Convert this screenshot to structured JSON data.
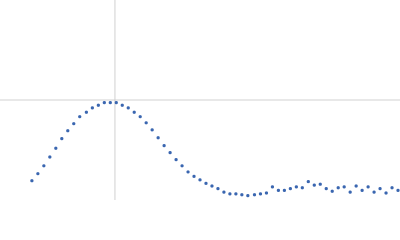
{
  "chart_data": {
    "type": "scatter",
    "x": [
      0.48,
      0.57,
      0.66,
      0.75,
      0.84,
      0.93,
      1.02,
      1.11,
      1.2,
      1.3,
      1.39,
      1.48,
      1.57,
      1.66,
      1.75,
      1.84,
      1.93,
      2.02,
      2.11,
      2.2,
      2.29,
      2.38,
      2.47,
      2.56,
      2.65,
      2.74,
      2.83,
      2.92,
      3.01,
      3.1,
      3.19,
      3.28,
      3.37,
      3.46,
      3.55,
      3.64,
      3.73,
      3.83,
      3.92,
      4.01,
      4.1,
      4.19,
      4.28,
      4.37,
      4.46,
      4.55,
      4.64,
      4.73,
      4.82,
      4.91,
      5.0,
      5.09,
      5.18,
      5.27,
      5.36,
      5.45,
      5.54,
      5.63,
      5.72,
      5.81,
      5.9,
      5.99
    ],
    "values": [
      0.19,
      0.27,
      0.36,
      0.46,
      0.56,
      0.67,
      0.76,
      0.84,
      0.92,
      0.97,
      1.02,
      1.05,
      1.08,
      1.08,
      1.08,
      1.05,
      1.02,
      0.97,
      0.92,
      0.85,
      0.77,
      0.68,
      0.59,
      0.51,
      0.43,
      0.36,
      0.29,
      0.24,
      0.2,
      0.16,
      0.13,
      0.1,
      0.06,
      0.04,
      0.04,
      0.03,
      0.02,
      0.03,
      0.04,
      0.05,
      0.12,
      0.08,
      0.08,
      0.1,
      0.12,
      0.11,
      0.18,
      0.14,
      0.15,
      0.1,
      0.07,
      0.11,
      0.12,
      0.06,
      0.13,
      0.08,
      0.12,
      0.06,
      0.1,
      0.05,
      0.11,
      0.08
    ],
    "color": "#3a66b0",
    "xlim": [
      0,
      6.02
    ],
    "ylim": [
      -0.03,
      2.25
    ],
    "reference_lines": {
      "x": 1.73,
      "y": 1.11,
      "color": "#d0d0d0"
    }
  }
}
